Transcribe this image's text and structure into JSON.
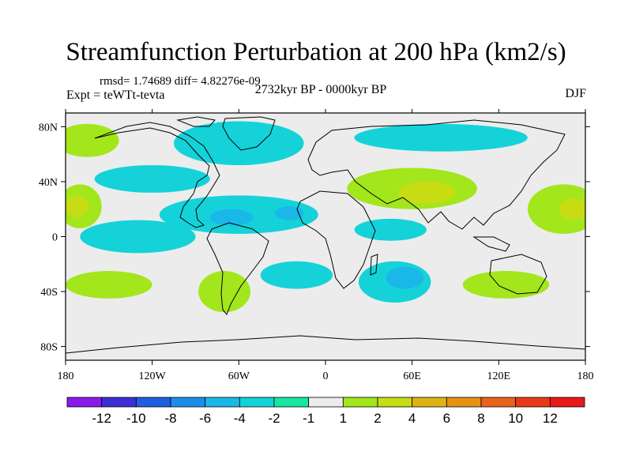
{
  "chart_data": {
    "type": "heatmap",
    "title": "Streamfunction Perturbation at 200 hPa (km2/s)",
    "stats_text": "rmsd= 1.74689 diff= 4.82276e-09",
    "experiment_label": "Expt = teWTt-tevta",
    "period_label": "2732kyr BP - 0000kyr BP",
    "season_label": "DJF",
    "x_ticks": [
      {
        "lon": -180,
        "label": "180"
      },
      {
        "lon": -120,
        "label": "120W"
      },
      {
        "lon": -60,
        "label": "60W"
      },
      {
        "lon": 0,
        "label": "0"
      },
      {
        "lon": 60,
        "label": "60E"
      },
      {
        "lon": 120,
        "label": "120E"
      },
      {
        "lon": 180,
        "label": "180"
      }
    ],
    "y_ticks": [
      {
        "lat": 80,
        "label": "80N"
      },
      {
        "lat": 40,
        "label": "40N"
      },
      {
        "lat": 0,
        "label": "0"
      },
      {
        "lat": -40,
        "label": "40S"
      },
      {
        "lat": -80,
        "label": "80S"
      }
    ],
    "xlim": [
      -180,
      180
    ],
    "ylim": [
      -90,
      90
    ],
    "colorbar": {
      "levels": [
        "-12",
        "-10",
        "-8",
        "-6",
        "-4",
        "-2",
        "-1",
        "1",
        "2",
        "4",
        "6",
        "8",
        "10",
        "12"
      ],
      "colors": [
        "#8c1aeb",
        "#3d2ed6",
        "#1f5ee0",
        "#1d8ee8",
        "#19b8e8",
        "#15d2d9",
        "#18e6a3",
        "#ececec",
        "#a3e61c",
        "#c8dc14",
        "#dcb414",
        "#e69114",
        "#e8641a",
        "#e83a1a",
        "#e81a1a"
      ]
    },
    "regions": [
      {
        "name": "north-atlantic-arctic-low",
        "lon": -60,
        "lat": 68,
        "rlon": 45,
        "rlat": 16,
        "level": "-2"
      },
      {
        "name": "tropical-atlantic-trough",
        "lon": -60,
        "lat": 16,
        "rlon": 55,
        "rlat": 14,
        "level": "-2"
      },
      {
        "name": "caribbean-core",
        "lon": -65,
        "lat": 14,
        "rlon": 15,
        "rlat": 6,
        "level": "-4"
      },
      {
        "name": "west-africa-core",
        "lon": -25,
        "lat": 17,
        "rlon": 10,
        "rlat": 5,
        "level": "-4"
      },
      {
        "name": "arabian-sea-trough",
        "lon": 45,
        "lat": 5,
        "rlon": 25,
        "rlat": 8,
        "level": "-2"
      },
      {
        "name": "south-indian-ocean-low",
        "lon": 48,
        "lat": -33,
        "rlon": 25,
        "rlat": 15,
        "level": "-2"
      },
      {
        "name": "south-indian-core",
        "lon": 55,
        "lat": -30,
        "rlon": 13,
        "rlat": 8,
        "level": "-4"
      },
      {
        "name": "south-atlantic-trough",
        "lon": -20,
        "lat": -28,
        "rlon": 25,
        "rlat": 10,
        "level": "-2"
      },
      {
        "name": "pacific-subtropical-low",
        "lon": -130,
        "lat": 0,
        "rlon": 40,
        "rlat": 12,
        "level": "-2"
      },
      {
        "name": "north-pacific-trough",
        "lon": -120,
        "lat": 42,
        "rlon": 40,
        "rlat": 10,
        "level": "-2"
      },
      {
        "name": "siberia-low",
        "lon": 80,
        "lat": 72,
        "rlon": 60,
        "rlat": 10,
        "level": "-2"
      },
      {
        "name": "eurasia-high",
        "lon": 60,
        "lat": 35,
        "rlon": 45,
        "rlat": 15,
        "level": "2"
      },
      {
        "name": "eurasia-core",
        "lon": 70,
        "lat": 32,
        "rlon": 20,
        "rlat": 8,
        "level": "4"
      },
      {
        "name": "west-pacific-high",
        "lon": 165,
        "lat": 20,
        "rlon": 25,
        "rlat": 18,
        "level": "2"
      },
      {
        "name": "west-pacific-core",
        "lon": 172,
        "lat": 20,
        "rlon": 10,
        "rlat": 8,
        "level": "4"
      },
      {
        "name": "east-pacific-high",
        "lon": -170,
        "lat": 22,
        "rlon": 15,
        "rlat": 16,
        "level": "2"
      },
      {
        "name": "east-pacific-core",
        "lon": -172,
        "lat": 22,
        "rlon": 8,
        "rlat": 8,
        "level": "4"
      },
      {
        "name": "alaska-high",
        "lon": -165,
        "lat": 70,
        "rlon": 22,
        "rlat": 12,
        "level": "2"
      },
      {
        "name": "south-pacific-high",
        "lon": -150,
        "lat": -35,
        "rlon": 30,
        "rlat": 10,
        "level": "2"
      },
      {
        "name": "south-america-high",
        "lon": -70,
        "lat": -40,
        "rlon": 18,
        "rlat": 15,
        "level": "2"
      },
      {
        "name": "australia-high",
        "lon": 125,
        "lat": -35,
        "rlon": 30,
        "rlat": 10,
        "level": "2"
      }
    ]
  }
}
